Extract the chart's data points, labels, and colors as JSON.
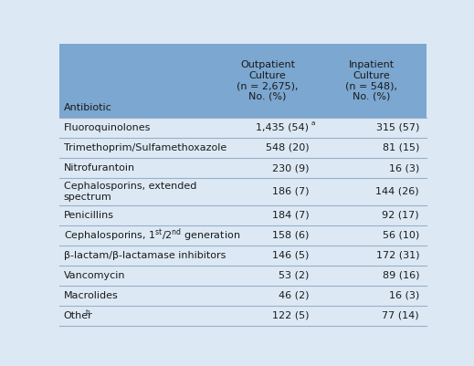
{
  "header_col": "Antibiotic",
  "col1_header": "Outpatient\nCulture\n(n = 2,675),\nNo. (%)",
  "col2_header": "Inpatient\nCulture\n(n = 548),\nNo. (%)",
  "rows": [
    {
      "antibiotic": "Fluoroquinolones",
      "outpatient": "1,435 (54)",
      "out_sup": "a",
      "inpatient": "315 (57)",
      "in_sup": ""
    },
    {
      "antibiotic": "Trimethoprim/Sulfamethoxazole",
      "outpatient": "548 (20)",
      "out_sup": "",
      "inpatient": "81 (15)",
      "in_sup": ""
    },
    {
      "antibiotic": "Nitrofurantoin",
      "outpatient": "230 (9)",
      "out_sup": "",
      "inpatient": "16 (3)",
      "in_sup": ""
    },
    {
      "antibiotic": "Cephalosporins, extended\nspectrum",
      "outpatient": "186 (7)",
      "out_sup": "",
      "inpatient": "144 (26)",
      "in_sup": ""
    },
    {
      "antibiotic": "Penicillins",
      "outpatient": "184 (7)",
      "out_sup": "",
      "inpatient": "92 (17)",
      "in_sup": ""
    },
    {
      "antibiotic": "Cephalosporins, 1$^{st}$/2$^{nd}$ generation",
      "outpatient": "158 (6)",
      "out_sup": "",
      "inpatient": "56 (10)",
      "in_sup": ""
    },
    {
      "antibiotic": "β-lactam/β-lactamase inhibitors",
      "outpatient": "146 (5)",
      "out_sup": "",
      "inpatient": "172 (31)",
      "in_sup": ""
    },
    {
      "antibiotic": "Vancomycin",
      "outpatient": "53 (2)",
      "out_sup": "",
      "inpatient": "89 (16)",
      "in_sup": ""
    },
    {
      "antibiotic": "Macrolides",
      "outpatient": "46 (2)",
      "out_sup": "",
      "inpatient": "16 (3)",
      "in_sup": ""
    },
    {
      "antibiotic": "Other",
      "outpatient": "122 (5)",
      "out_sup": "",
      "inpatient": "77 (14)",
      "in_sup": ""
    }
  ],
  "header_bg": "#7ba7d0",
  "row_bg": "#dce9f5",
  "text_color": "#1a1a1a",
  "line_color": "#9aafc5",
  "figsize": [
    5.19,
    4.01
  ],
  "dpi": 100,
  "font_size": 8.0,
  "header_font_size": 8.0
}
